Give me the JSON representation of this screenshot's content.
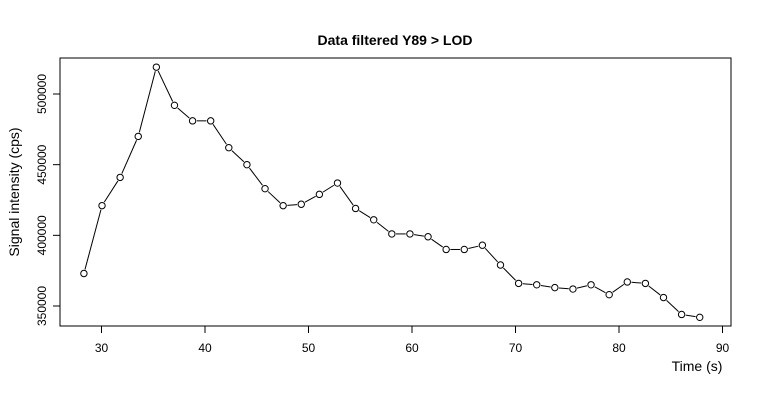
{
  "chart_data": {
    "type": "line",
    "title": "Data filtered Y89 > LOD",
    "xlabel": "Time (s)",
    "ylabel": "Signal intensity (cps)",
    "xlim": [
      28.3,
      88.5
    ],
    "ylim": [
      350000,
      520000
    ],
    "x_ticks": [
      30,
      40,
      50,
      60,
      70,
      80,
      90
    ],
    "y_ticks": [
      350000,
      400000,
      450000,
      500000
    ],
    "grid": false,
    "style": "points-and-lines",
    "series": [
      {
        "x": [
          28.3,
          30.05,
          31.8,
          33.55,
          35.3,
          37.05,
          38.8,
          40.55,
          42.3,
          44.05,
          45.8,
          47.55,
          49.3,
          51.05,
          52.8,
          54.55,
          56.3,
          58.05,
          59.8,
          61.55,
          63.3,
          65.05,
          66.8,
          68.55,
          70.3,
          72.05,
          73.8,
          75.55,
          77.3,
          79.05,
          80.8,
          82.55,
          84.3,
          86.05,
          87.8
        ],
        "y": [
          373000,
          421000,
          441000,
          470000,
          519000,
          492000,
          481000,
          481000,
          462000,
          450000,
          433000,
          421000,
          422000,
          429000,
          437000,
          419000,
          411000,
          401000,
          401000,
          399000,
          390000,
          390000,
          393000,
          379000,
          366000,
          365000,
          363000,
          362000,
          365000,
          358000,
          367000,
          366000,
          356000,
          344000,
          342000
        ]
      }
    ]
  }
}
